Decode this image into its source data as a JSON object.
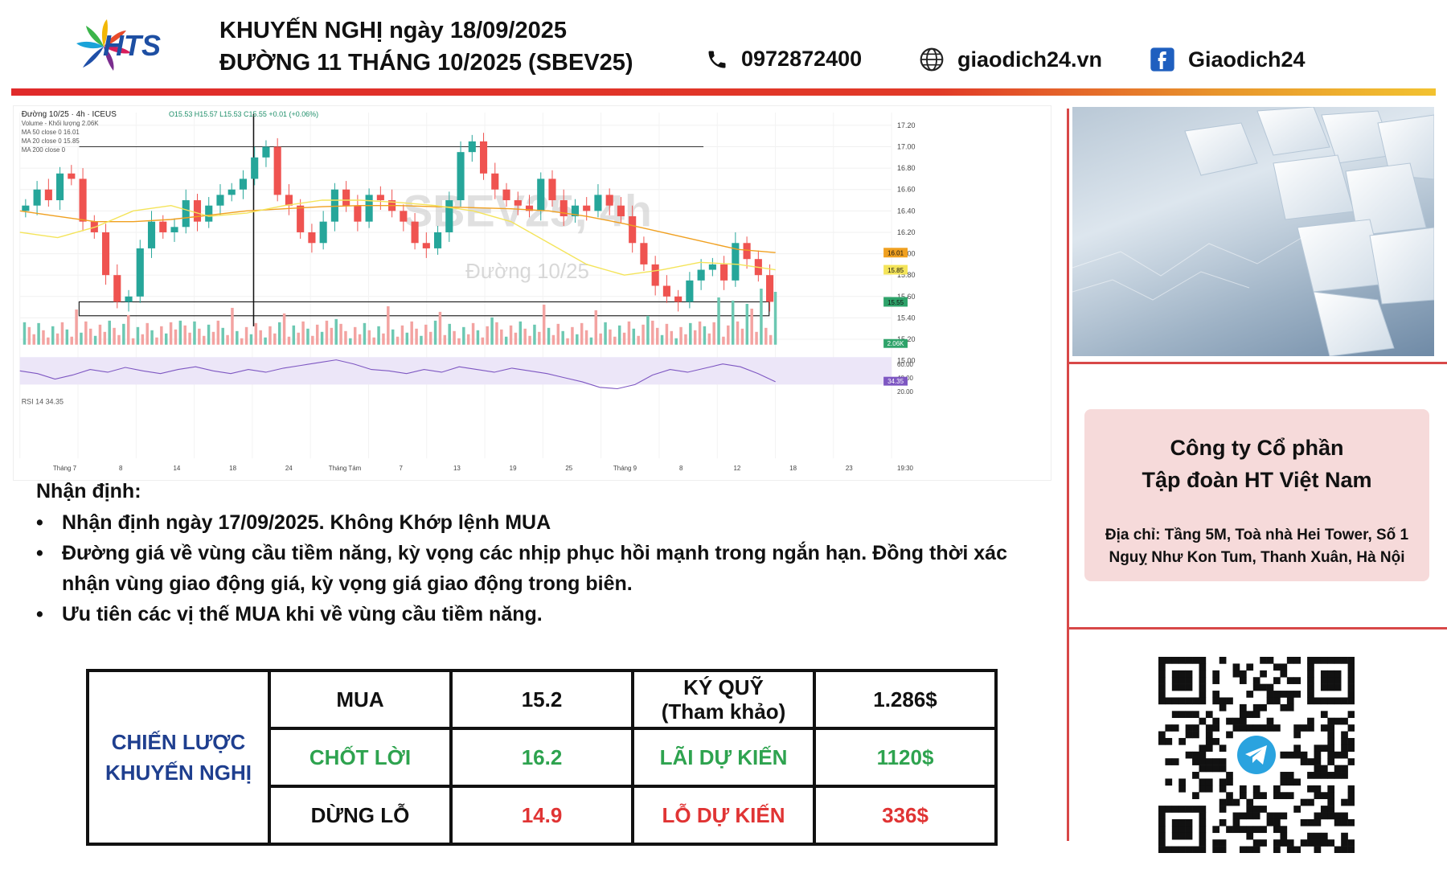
{
  "header": {
    "logo_text": "HTS",
    "title_line1": "KHUYẾN NGHỊ ngày 18/09/2025",
    "title_line2": "ĐƯỜNG 11 THÁNG 10/2025 (SBEV25)",
    "phone": "0972872400",
    "website": "giaodich24.vn",
    "facebook": "Giaodich24",
    "bar_gradient": [
      "#e02a2a",
      "#f2c230"
    ]
  },
  "chart_data": {
    "type": "candlestick",
    "header_text": "Đường 10/25 · 4h · ICEUS",
    "ohlc_text": "O15.53 H15.57 L15.53 C15.55 +0.01 (+0.06%)",
    "indicators": [
      "Volume - Khối lượng 2.06K",
      "MA 50 close 0 16.01",
      "MA 20 close 0 15.85",
      "MA 200 close 0"
    ],
    "watermark_line1": "SBEV25, 4h",
    "watermark_line2": "Đường 10/25",
    "price_axis": [
      "17.20",
      "17.00",
      "16.80",
      "16.60",
      "16.40",
      "16.20",
      "16.00",
      "15.80",
      "15.60",
      "15.40",
      "15.20",
      "15.00"
    ],
    "price_tags": [
      {
        "label": "16.01",
        "value": 16.01,
        "color": "#f0a020"
      },
      {
        "label": "15.85",
        "value": 15.85,
        "color": "#f4e45a"
      },
      {
        "label": "15.55",
        "value": 15.55,
        "color": "#2ea36a"
      }
    ],
    "volume_tag": "2.06K",
    "rsi_label": "RSI 14 34.35",
    "rsi_axis": [
      "60.00",
      "40.00",
      "20.00"
    ],
    "rsi_tag": "34.35",
    "time_axis": [
      "Tháng 7",
      "8",
      "14",
      "18",
      "24",
      "Tháng Tám",
      "7",
      "13",
      "19",
      "25",
      "Tháng 9",
      "8",
      "12",
      "18",
      "23",
      "19:30"
    ],
    "ylim": [
      15.0,
      17.2
    ],
    "resistance_level": 17.0,
    "support_zone": [
      15.42,
      15.55
    ],
    "close_series": [
      16.45,
      16.6,
      16.5,
      16.75,
      16.7,
      16.3,
      16.2,
      15.8,
      15.55,
      15.6,
      16.05,
      16.3,
      16.2,
      16.25,
      16.5,
      16.3,
      16.45,
      16.55,
      16.6,
      16.7,
      16.9,
      17.0,
      16.55,
      16.45,
      16.2,
      16.1,
      16.3,
      16.6,
      16.45,
      16.3,
      16.55,
      16.5,
      16.4,
      16.3,
      16.1,
      16.05,
      16.2,
      16.5,
      16.95,
      17.05,
      16.75,
      16.6,
      16.5,
      16.45,
      16.4,
      16.7,
      16.5,
      16.35,
      16.45,
      16.4,
      16.55,
      16.45,
      16.35,
      16.1,
      15.9,
      15.7,
      15.6,
      15.55,
      15.75,
      15.85,
      15.9,
      15.75,
      16.1,
      15.95,
      15.8,
      15.55
    ],
    "ma50": [
      16.4,
      16.35,
      16.3,
      16.3,
      16.32,
      16.36,
      16.4,
      16.42,
      16.44,
      16.45,
      16.45,
      16.44,
      16.43,
      16.42,
      16.4,
      16.35,
      16.28,
      16.2,
      16.12,
      16.04,
      16.01
    ],
    "ma20": [
      16.2,
      16.15,
      16.25,
      16.4,
      16.45,
      16.35,
      16.38,
      16.45,
      16.5,
      16.5,
      16.48,
      16.45,
      16.4,
      16.3,
      16.1,
      15.9,
      15.8,
      15.85,
      15.92,
      15.9,
      15.85
    ],
    "rsi_series": [
      50,
      46,
      38,
      44,
      52,
      48,
      55,
      50,
      46,
      52,
      56,
      50,
      46,
      52,
      48,
      54,
      58,
      62,
      66,
      60,
      52,
      50,
      46,
      52,
      48,
      56,
      52,
      48,
      54,
      50,
      46,
      40,
      34,
      26,
      24,
      30,
      44,
      52,
      48,
      54,
      60,
      56,
      46,
      34
    ]
  },
  "right_panel": {
    "company_name_line1": "Công ty Cổ phần",
    "company_name_line2": "Tập đoàn HT Việt Nam",
    "address_line1": "Địa chỉ: Tầng 5M, Toà nhà Hei Tower, Số 1",
    "address_line2": "Nguỵ Như Kon Tum, Thanh Xuân, Hà Nội",
    "card_color": "#f6dada",
    "divider_color": "#d84848"
  },
  "analysis": {
    "title": "Nhận định:",
    "bullet_symbol": "•",
    "bullets": [
      "Nhận định ngày 17/09/2025. Không Khớp lệnh MUA",
      "Đường giá về vùng cầu tiềm năng, kỳ vọng các nhịp phục hồi mạnh trong ngắn hạn. Đồng thời xác nhận vùng giao động giá, kỳ vọng giá giao động trong biên.",
      "Ưu tiên các vị thế MUA khi về vùng cầu tiềm năng."
    ]
  },
  "strategy_table": {
    "heading_line1": "CHIẾN LƯỢC",
    "heading_line2": "KHUYẾN NGHỊ",
    "heading_color": "#1f3f8f",
    "rows": [
      {
        "action": "MUA",
        "price": "15.2",
        "metric_line1": "KÝ QUỸ",
        "metric_line2": "(Tham khảo)",
        "amount": "1.286$",
        "tone": "black"
      },
      {
        "action": "CHỐT LỜI",
        "price": "16.2",
        "metric_line1": "LÃI DỰ KIẾN",
        "metric_line2": "",
        "amount": "1120$",
        "tone": "green"
      },
      {
        "action": "DỪNG LỖ",
        "price": "14.9",
        "metric_line1": "LỖ DỰ KIẾN",
        "metric_line2": "",
        "amount": "336$",
        "tone": "red"
      }
    ]
  },
  "colors": {
    "green": "#2ea34f",
    "red": "#e03434",
    "candle_up": "#26a69a",
    "candle_down": "#ef5350"
  }
}
